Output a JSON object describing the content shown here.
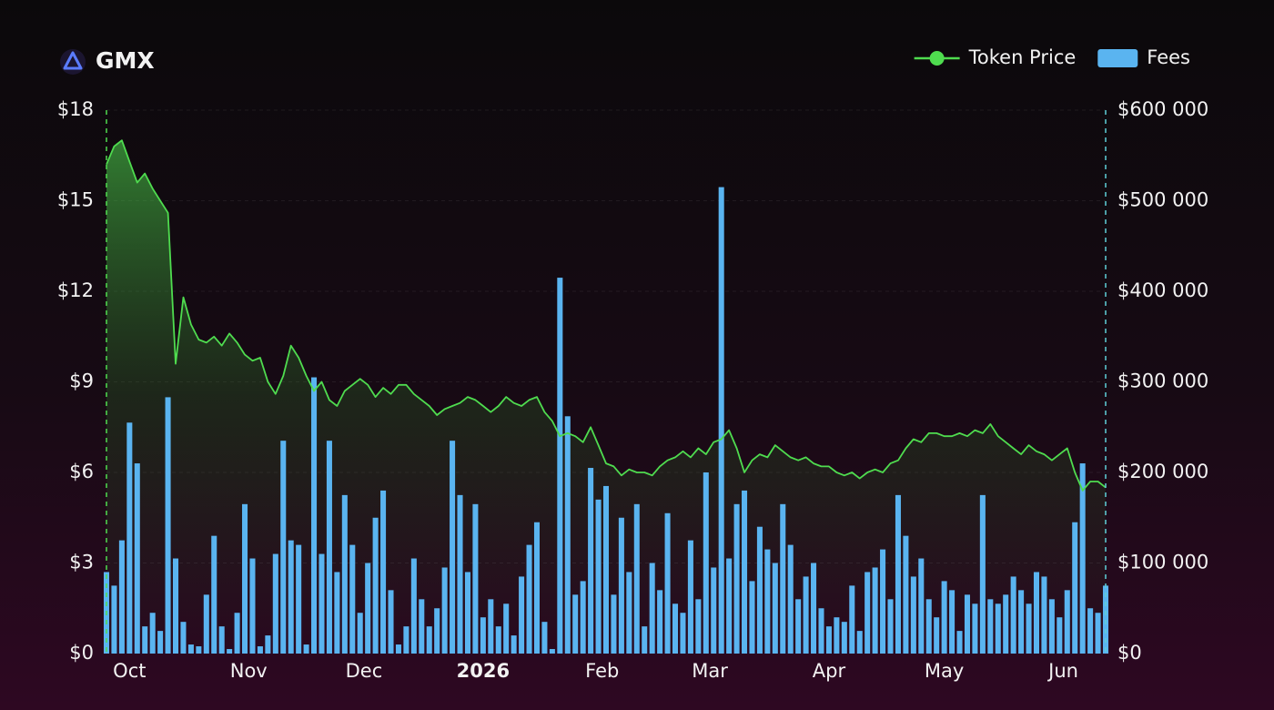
{
  "chart_data": {
    "type": "combo",
    "title": "GMX",
    "legend": "top-right",
    "grid": true,
    "xlim": [
      0,
      130
    ],
    "xticks": [
      {
        "value": 3,
        "label": "Oct"
      },
      {
        "value": 18.5,
        "label": "Nov"
      },
      {
        "value": 33.5,
        "label": "Dec"
      },
      {
        "value": 49,
        "label": "2026",
        "bold": true
      },
      {
        "value": 64.5,
        "label": "Feb"
      },
      {
        "value": 78.5,
        "label": "Mar"
      },
      {
        "value": 94,
        "label": "Apr"
      },
      {
        "value": 109,
        "label": "May"
      },
      {
        "value": 124.5,
        "label": "Jun"
      }
    ],
    "ylim": [
      0,
      18
    ],
    "yticks": [
      {
        "value": 0,
        "label": "$0"
      },
      {
        "value": 3,
        "label": "$3"
      },
      {
        "value": 6,
        "label": "$6"
      },
      {
        "value": 9,
        "label": "$9"
      },
      {
        "value": 12,
        "label": "$12"
      },
      {
        "value": 15,
        "label": "$15"
      },
      {
        "value": 18,
        "label": "$18"
      }
    ],
    "y2lim": [
      0,
      600000
    ],
    "y2ticks": [
      {
        "value": 0,
        "label": "$0"
      },
      {
        "value": 100000,
        "label": "$100 000"
      },
      {
        "value": 200000,
        "label": "$200 000"
      },
      {
        "value": 300000,
        "label": "$300 000"
      },
      {
        "value": 400000,
        "label": "$400 000"
      },
      {
        "value": 500000,
        "label": "$500 000"
      },
      {
        "value": 600000,
        "label": "$600 000"
      }
    ],
    "series": [
      {
        "name": "Token Price",
        "type": "line",
        "color": "#4fdc4f",
        "values": [
          16.2,
          16.8,
          17.0,
          16.3,
          15.6,
          15.9,
          15.4,
          15.0,
          14.6,
          9.6,
          11.8,
          10.9,
          10.4,
          10.3,
          10.5,
          10.2,
          10.6,
          10.3,
          9.9,
          9.7,
          9.8,
          9.0,
          8.6,
          9.2,
          10.2,
          9.8,
          9.2,
          8.7,
          9.0,
          8.4,
          8.2,
          8.7,
          8.9,
          9.1,
          8.9,
          8.5,
          8.8,
          8.6,
          8.9,
          8.9,
          8.6,
          8.4,
          8.2,
          7.9,
          8.1,
          8.2,
          8.3,
          8.5,
          8.4,
          8.2,
          8.0,
          8.2,
          8.5,
          8.3,
          8.2,
          8.4,
          8.5,
          8.0,
          7.7,
          7.2,
          7.3,
          7.2,
          7.0,
          7.5,
          6.9,
          6.3,
          6.2,
          5.9,
          6.1,
          6.0,
          6.0,
          5.9,
          6.2,
          6.4,
          6.5,
          6.7,
          6.5,
          6.8,
          6.6,
          7.0,
          7.1,
          7.4,
          6.8,
          6.0,
          6.4,
          6.6,
          6.5,
          6.9,
          6.7,
          6.5,
          6.4,
          6.5,
          6.3,
          6.2,
          6.2,
          6.0,
          5.9,
          6.0,
          5.8,
          6.0,
          6.1,
          6.0,
          6.3,
          6.4,
          6.8,
          7.1,
          7.0,
          7.3,
          7.3,
          7.2,
          7.2,
          7.3,
          7.2,
          7.4,
          7.3,
          7.6,
          7.2,
          7.0,
          6.8,
          6.6,
          6.9,
          6.7,
          6.6,
          6.4,
          6.6,
          6.8,
          6.0,
          5.4,
          5.7,
          5.7,
          5.5
        ]
      },
      {
        "name": "Fees",
        "type": "bar",
        "axis": "y2",
        "color": "#5ab4f0",
        "values": [
          90000,
          75000,
          125000,
          255000,
          210000,
          30000,
          45000,
          25000,
          283000,
          105000,
          35000,
          10000,
          8000,
          65000,
          130000,
          30000,
          5000,
          45000,
          165000,
          105000,
          8000,
          20000,
          110000,
          235000,
          125000,
          120000,
          10000,
          305000,
          110000,
          235000,
          90000,
          175000,
          120000,
          45000,
          100000,
          150000,
          180000,
          70000,
          10000,
          30000,
          105000,
          60000,
          30000,
          50000,
          95000,
          235000,
          175000,
          90000,
          165000,
          40000,
          60000,
          30000,
          55000,
          20000,
          85000,
          120000,
          145000,
          35000,
          5000,
          415000,
          262000,
          65000,
          80000,
          205000,
          170000,
          185000,
          65000,
          150000,
          90000,
          165000,
          30000,
          100000,
          70000,
          155000,
          55000,
          45000,
          125000,
          60000,
          200000,
          95000,
          515000,
          105000,
          165000,
          180000,
          80000,
          140000,
          115000,
          100000,
          165000,
          120000,
          60000,
          85000,
          100000,
          50000,
          30000,
          40000,
          35000,
          75000,
          25000,
          90000,
          95000,
          115000,
          60000,
          175000,
          130000,
          85000,
          105000,
          60000,
          40000,
          80000,
          70000,
          25000,
          65000,
          55000,
          175000,
          60000,
          55000,
          65000,
          85000,
          70000,
          55000,
          90000,
          85000,
          60000,
          40000,
          70000,
          145000,
          210000,
          50000,
          45000,
          75000
        ]
      }
    ]
  }
}
